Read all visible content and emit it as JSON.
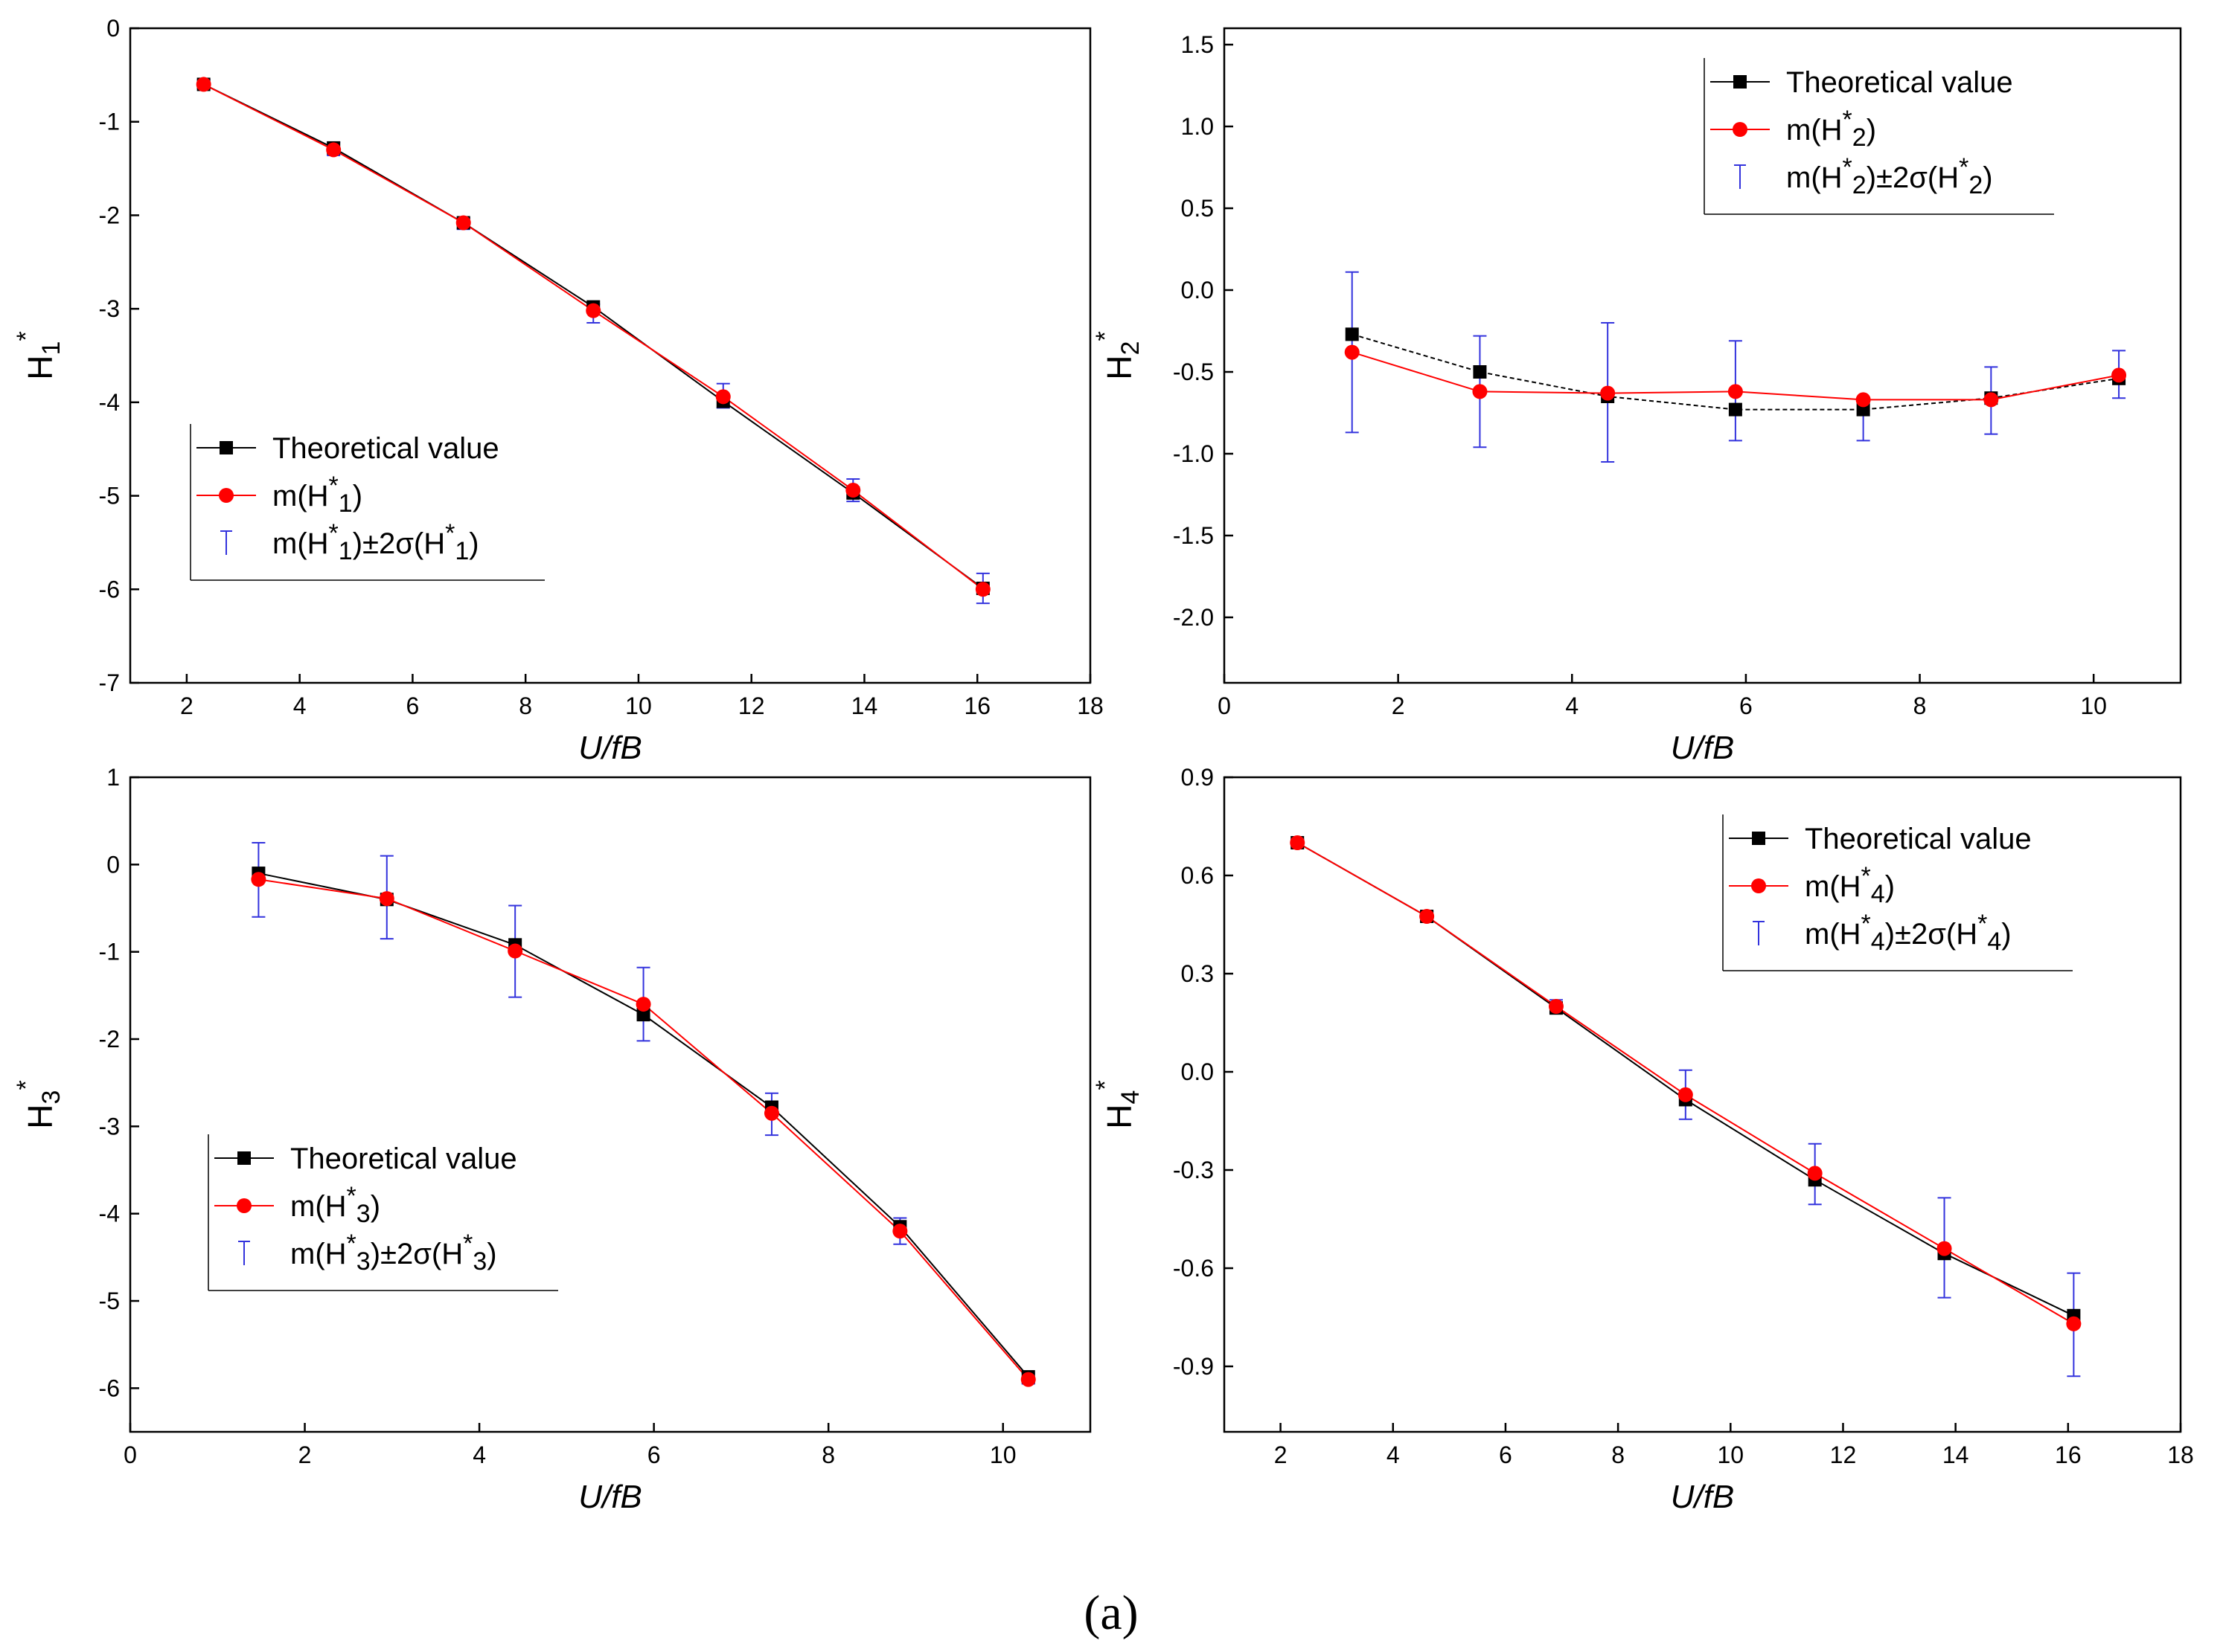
{
  "figure_label": "(a)",
  "colors": {
    "theoretical": "#000000",
    "mean": "#ff0000",
    "errorbar": "#3333dd"
  },
  "chart_data": [
    {
      "id": "h1",
      "type": "line",
      "ylabel": "H",
      "ylabel_sub": "1",
      "ylabel_sup": "*",
      "xlabel": "U/fB",
      "xlim": [
        1,
        18
      ],
      "ylim": [
        -7,
        0
      ],
      "xticks": [
        2,
        4,
        6,
        8,
        10,
        12,
        14,
        16,
        18
      ],
      "yticks": [
        0,
        -1,
        -2,
        -3,
        -4,
        -5,
        -6,
        -7
      ],
      "ytick_labels": [
        "0",
        "-1",
        "-2",
        "-3",
        "-4",
        "-5",
        "-6",
        "-7"
      ],
      "legend_position": "middle-left",
      "legend": [
        {
          "series": "theoretical",
          "text": "Theoretical value"
        },
        {
          "series": "mean",
          "text": "m(H",
          "sub": "1",
          "suffix": ")"
        },
        {
          "series": "band",
          "text": "m(H",
          "sub": "1",
          "mid": ")±2σ(H",
          "suffix": ")"
        }
      ],
      "x": [
        2.3,
        4.6,
        6.9,
        9.2,
        11.5,
        13.8,
        16.1
      ],
      "theoretical": [
        -0.6,
        -1.28,
        -2.08,
        -2.98,
        -3.99,
        -4.97,
        -5.99
      ],
      "mean": [
        -0.6,
        -1.3,
        -2.08,
        -3.02,
        -3.94,
        -4.94,
        -6.0
      ],
      "upper": [
        -0.55,
        -1.22,
        -2.03,
        -2.95,
        -3.8,
        -4.82,
        -5.83
      ],
      "lower": [
        -0.64,
        -1.36,
        -2.15,
        -3.15,
        -4.06,
        -5.06,
        -6.15
      ]
    },
    {
      "id": "h2",
      "type": "line",
      "ylabel": "H",
      "ylabel_sub": "2",
      "ylabel_sup": "*",
      "xlabel": "U/fB",
      "xlim": [
        0,
        11
      ],
      "ylim": [
        -2.4,
        1.6
      ],
      "xticks": [
        0,
        2,
        4,
        6,
        8,
        10
      ],
      "yticks": [
        1.5,
        1.0,
        0.5,
        0.0,
        -0.5,
        -1.0,
        -1.5,
        -2.0
      ],
      "ytick_labels": [
        "1.5",
        "1.0",
        "0.5",
        "0.0",
        "-0.5",
        "-1.0",
        "-1.5",
        "-2.0"
      ],
      "legend_position": "top-right",
      "legend": [
        {
          "series": "theoretical",
          "text": "Theoretical value"
        },
        {
          "series": "mean",
          "text": "m(H",
          "sub": "2",
          "suffix": ")"
        },
        {
          "series": "band",
          "text": "m(H",
          "sub": "2",
          "mid": ")±2σ(H",
          "suffix": ")"
        }
      ],
      "x": [
        1.47,
        2.94,
        4.41,
        5.88,
        7.35,
        8.82,
        10.29
      ],
      "theoretical": [
        -0.27,
        -0.5,
        -0.65,
        -0.73,
        -0.73,
        -0.66,
        -0.54
      ],
      "mean": [
        -0.38,
        -0.62,
        -0.63,
        -0.62,
        -0.67,
        -0.67,
        -0.52
      ],
      "upper": [
        0.11,
        -0.28,
        -0.2,
        -0.31,
        -0.67,
        -0.47,
        -0.37
      ],
      "lower": [
        -0.87,
        -0.96,
        -1.05,
        -0.92,
        -0.92,
        -0.88,
        -0.66
      ]
    },
    {
      "id": "h3",
      "type": "line",
      "ylabel": "H",
      "ylabel_sub": "3",
      "ylabel_sup": "*",
      "xlabel": "U/fB",
      "xlim": [
        0,
        11
      ],
      "ylim": [
        -6.5,
        1
      ],
      "xticks": [
        0,
        2,
        4,
        6,
        8,
        10
      ],
      "yticks": [
        1,
        0,
        -1,
        -2,
        -3,
        -4,
        -5,
        -6
      ],
      "ytick_labels": [
        "1",
        "0",
        "-1",
        "-2",
        "-3",
        "-4",
        "-5",
        "-6"
      ],
      "legend_position": "bottom-left",
      "legend": [
        {
          "series": "theoretical",
          "text": "Theoretical value"
        },
        {
          "series": "mean",
          "text": "m(H",
          "sub": "3",
          "suffix": ")"
        },
        {
          "series": "band",
          "text": "m(H",
          "sub": "3",
          "mid": ")±2σ(H",
          "suffix": ")"
        }
      ],
      "x": [
        1.47,
        2.94,
        4.41,
        5.88,
        7.35,
        8.82,
        10.29
      ],
      "theoretical": [
        -0.1,
        -0.4,
        -0.92,
        -1.72,
        -2.78,
        -4.15,
        -5.87
      ],
      "mean": [
        -0.17,
        -0.39,
        -0.99,
        -1.6,
        -2.85,
        -4.2,
        -5.9
      ],
      "upper": [
        0.25,
        0.1,
        -0.47,
        -1.18,
        -2.62,
        -4.05,
        -5.83
      ],
      "lower": [
        -0.6,
        -0.85,
        -1.52,
        -2.02,
        -3.1,
        -4.35,
        -5.95
      ]
    },
    {
      "id": "h4",
      "type": "line",
      "ylabel": "H",
      "ylabel_sub": "4",
      "ylabel_sup": "*",
      "xlabel": "U/fB",
      "xlim": [
        1,
        18
      ],
      "ylim": [
        -1.1,
        0.9
      ],
      "xticks": [
        2,
        4,
        6,
        8,
        10,
        12,
        14,
        16,
        18
      ],
      "yticks": [
        0.9,
        0.6,
        0.3,
        0.0,
        -0.3,
        -0.6,
        -0.9
      ],
      "ytick_labels": [
        "0.9",
        "0.6",
        "0.3",
        "0.0",
        "-0.3",
        "-0.6",
        "-0.9"
      ],
      "legend_position": "top-right",
      "legend": [
        {
          "series": "theoretical",
          "text": "Theoretical value"
        },
        {
          "series": "mean",
          "text": "m(H",
          "sub": "4",
          "suffix": ")"
        },
        {
          "series": "band",
          "text": "m(H",
          "sub": "4",
          "mid": ")±2σ(H",
          "suffix": ")"
        }
      ],
      "x": [
        2.3,
        4.6,
        6.9,
        9.2,
        11.5,
        13.8,
        16.1
      ],
      "theoretical": [
        0.7,
        0.475,
        0.195,
        -0.085,
        -0.33,
        -0.555,
        -0.745
      ],
      "mean": [
        0.7,
        0.475,
        0.2,
        -0.07,
        -0.31,
        -0.54,
        -0.77
      ],
      "upper": [
        0.71,
        0.49,
        0.22,
        0.005,
        -0.22,
        -0.385,
        -0.615
      ],
      "lower": [
        0.69,
        0.46,
        0.18,
        -0.145,
        -0.405,
        -0.69,
        -0.93
      ]
    }
  ]
}
